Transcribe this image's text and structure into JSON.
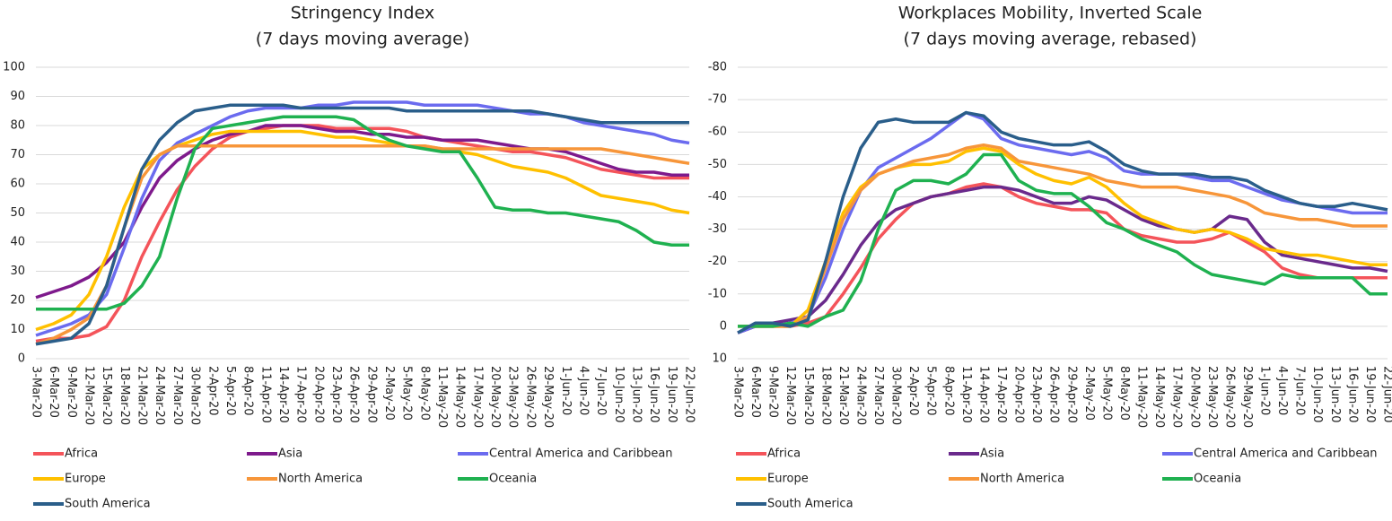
{
  "chart_data": [
    {
      "type": "line",
      "title": "Stringency Index",
      "subtitle": "(7 days moving average)",
      "categories": [
        "3-Mar-20",
        "6-Mar-20",
        "9-Mar-20",
        "12-Mar-20",
        "15-Mar-20",
        "18-Mar-20",
        "21-Mar-20",
        "24-Mar-20",
        "27-Mar-20",
        "30-Mar-20",
        "2-Apr-20",
        "5-Apr-20",
        "8-Apr-20",
        "11-Apr-20",
        "14-Apr-20",
        "17-Apr-20",
        "20-Apr-20",
        "23-Apr-20",
        "26-Apr-20",
        "29-Apr-20",
        "2-May-20",
        "5-May-20",
        "8-May-20",
        "11-May-20",
        "14-May-20",
        "17-May-20",
        "20-May-20",
        "23-May-20",
        "26-May-20",
        "29-May-20",
        "1-Jun-20",
        "4-Jun-20",
        "7-Jun-20",
        "10-Jun-20",
        "13-Jun-20",
        "16-Jun-20",
        "19-Jun-20",
        "22-Jun-20"
      ],
      "ylim": [
        0,
        100
      ],
      "yticks": [
        0,
        10,
        20,
        30,
        40,
        50,
        60,
        70,
        80,
        90,
        100
      ],
      "grid": true,
      "legend": "bottom",
      "series": [
        {
          "name": "Africa",
          "color": "#f4545a",
          "values": [
            6,
            7,
            7,
            8,
            11,
            20,
            35,
            47,
            58,
            66,
            72,
            76,
            78,
            79,
            80,
            80,
            80,
            79,
            79,
            79,
            79,
            78,
            76,
            75,
            74,
            73,
            72,
            71,
            71,
            70,
            69,
            67,
            65,
            64,
            63,
            62,
            62,
            62
          ]
        },
        {
          "name": "Asia",
          "color": "#7e1a8c",
          "values": [
            21,
            23,
            25,
            28,
            33,
            40,
            52,
            62,
            68,
            72,
            75,
            77,
            78,
            80,
            80,
            80,
            79,
            78,
            78,
            77,
            77,
            76,
            76,
            75,
            75,
            75,
            74,
            73,
            72,
            72,
            71,
            69,
            67,
            65,
            64,
            64,
            63,
            63
          ]
        },
        {
          "name": "Central America and Caribbean",
          "color": "#6b6bef",
          "values": [
            8,
            10,
            12,
            15,
            22,
            38,
            55,
            68,
            74,
            77,
            80,
            83,
            85,
            86,
            86,
            86,
            87,
            87,
            88,
            88,
            88,
            88,
            87,
            87,
            87,
            87,
            86,
            85,
            84,
            84,
            83,
            81,
            80,
            79,
            78,
            77,
            75,
            74
          ]
        },
        {
          "name": "Europe",
          "color": "#ffc000",
          "values": [
            10,
            12,
            15,
            22,
            35,
            52,
            65,
            70,
            73,
            75,
            77,
            78,
            78,
            78,
            78,
            78,
            77,
            76,
            76,
            75,
            74,
            73,
            73,
            72,
            71,
            70,
            68,
            66,
            65,
            64,
            62,
            59,
            56,
            55,
            54,
            53,
            51,
            50
          ]
        },
        {
          "name": "North America",
          "color": "#f7963a",
          "values": [
            5,
            7,
            10,
            14,
            25,
            45,
            62,
            70,
            73,
            73,
            73,
            73,
            73,
            73,
            73,
            73,
            73,
            73,
            73,
            73,
            73,
            73,
            73,
            72,
            72,
            72,
            72,
            72,
            72,
            72,
            72,
            72,
            72,
            71,
            70,
            69,
            68,
            67
          ]
        },
        {
          "name": "Oceania",
          "color": "#1fb150",
          "values": [
            17,
            17,
            17,
            17,
            17,
            19,
            25,
            35,
            55,
            72,
            79,
            80,
            81,
            82,
            83,
            83,
            83,
            83,
            82,
            78,
            75,
            73,
            72,
            71,
            71,
            62,
            52,
            51,
            51,
            50,
            50,
            49,
            48,
            47,
            44,
            40,
            39,
            39
          ]
        },
        {
          "name": "South America",
          "color": "#2a5e8a",
          "values": [
            5,
            6,
            7,
            12,
            25,
            45,
            65,
            75,
            81,
            85,
            86,
            87,
            87,
            87,
            87,
            86,
            86,
            86,
            86,
            86,
            86,
            85,
            85,
            85,
            85,
            85,
            85,
            85,
            85,
            84,
            83,
            82,
            81,
            81,
            81,
            81,
            81,
            81
          ]
        }
      ]
    },
    {
      "type": "line",
      "title": "Workplaces Mobility, Inverted Scale",
      "subtitle": "(7 days moving average, rebased)",
      "categories": [
        "3-Mar-20",
        "6-Mar-20",
        "9-Mar-20",
        "12-Mar-20",
        "15-Mar-20",
        "18-Mar-20",
        "21-Mar-20",
        "24-Mar-20",
        "27-Mar-20",
        "30-Mar-20",
        "2-Apr-20",
        "5-Apr-20",
        "8-Apr-20",
        "11-Apr-20",
        "14-Apr-20",
        "17-Apr-20",
        "20-Apr-20",
        "23-Apr-20",
        "26-Apr-20",
        "29-Apr-20",
        "2-May-20",
        "5-May-20",
        "8-May-20",
        "11-May-20",
        "14-May-20",
        "17-May-20",
        "20-May-20",
        "23-May-20",
        "26-May-20",
        "29-May-20",
        "1-Jun-20",
        "4-Jun-20",
        "7-Jun-20",
        "10-Jun-20",
        "13-Jun-20",
        "16-Jun-20",
        "19-Jun-20",
        "22-Jun-20"
      ],
      "ylim": [
        10,
        -80
      ],
      "yticks": [
        10,
        0,
        -10,
        -20,
        -30,
        -40,
        -50,
        -60,
        -70,
        -80
      ],
      "grid": true,
      "legend": "bottom",
      "series": [
        {
          "name": "Africa",
          "color": "#f4545a",
          "values": [
            2,
            0,
            0,
            0,
            -1,
            -3,
            -10,
            -18,
            -27,
            -33,
            -38,
            -40,
            -41,
            -43,
            -44,
            -43,
            -40,
            -38,
            -37,
            -36,
            -36,
            -35,
            -30,
            -28,
            -27,
            -26,
            -26,
            -27,
            -29,
            -26,
            -23,
            -18,
            -16,
            -15,
            -15,
            -15,
            -15,
            -15
          ]
        },
        {
          "name": "Asia",
          "color": "#6a2a8c",
          "values": [
            2,
            0,
            -1,
            -2,
            -3,
            -8,
            -16,
            -25,
            -32,
            -36,
            -38,
            -40,
            -41,
            -42,
            -43,
            -43,
            -42,
            -40,
            -38,
            -38,
            -40,
            -39,
            -36,
            -33,
            -31,
            -30,
            -29,
            -30,
            -34,
            -33,
            -26,
            -22,
            -21,
            -20,
            -19,
            -18,
            -18,
            -17
          ]
        },
        {
          "name": "Central America and Caribbean",
          "color": "#6b6bef",
          "values": [
            2,
            0,
            0,
            -1,
            -3,
            -15,
            -30,
            -42,
            -49,
            -52,
            -55,
            -58,
            -62,
            -66,
            -64,
            -58,
            -56,
            -55,
            -54,
            -53,
            -54,
            -52,
            -48,
            -47,
            -47,
            -47,
            -46,
            -45,
            -45,
            -43,
            -41,
            -39,
            -38,
            -37,
            -36,
            -35,
            -35,
            -35
          ]
        },
        {
          "name": "Europe",
          "color": "#ffc000",
          "values": [
            0,
            0,
            0,
            0,
            -5,
            -20,
            -35,
            -43,
            -47,
            -49,
            -50,
            -50,
            -51,
            -54,
            -55,
            -54,
            -50,
            -47,
            -45,
            -44,
            -46,
            -43,
            -38,
            -34,
            -32,
            -30,
            -29,
            -30,
            -29,
            -27,
            -24,
            -23,
            -22,
            -22,
            -21,
            -20,
            -19,
            -19
          ]
        },
        {
          "name": "North America",
          "color": "#f7963a",
          "values": [
            0,
            0,
            0,
            0,
            -3,
            -18,
            -33,
            -42,
            -47,
            -49,
            -51,
            -52,
            -53,
            -55,
            -56,
            -55,
            -51,
            -50,
            -49,
            -48,
            -47,
            -45,
            -44,
            -43,
            -43,
            -43,
            -42,
            -41,
            -40,
            -38,
            -35,
            -34,
            -33,
            -33,
            -32,
            -31,
            -31,
            -31
          ]
        },
        {
          "name": "Oceania",
          "color": "#1fb150",
          "values": [
            0,
            0,
            0,
            -1,
            0,
            -3,
            -5,
            -14,
            -30,
            -42,
            -45,
            -45,
            -44,
            -47,
            -53,
            -53,
            -45,
            -42,
            -41,
            -41,
            -37,
            -32,
            -30,
            -27,
            -25,
            -23,
            -19,
            -16,
            -15,
            -14,
            -13,
            -16,
            -15,
            -15,
            -15,
            -15,
            -10,
            -10
          ]
        },
        {
          "name": "South America",
          "color": "#2a5e8a",
          "values": [
            2,
            -1,
            -1,
            0,
            -2,
            -20,
            -40,
            -55,
            -63,
            -64,
            -63,
            -63,
            -63,
            -66,
            -65,
            -60,
            -58,
            -57,
            -56,
            -56,
            -57,
            -54,
            -50,
            -48,
            -47,
            -47,
            -47,
            -46,
            -46,
            -45,
            -42,
            -40,
            -38,
            -37,
            -37,
            -38,
            -37,
            -36
          ]
        }
      ]
    }
  ]
}
